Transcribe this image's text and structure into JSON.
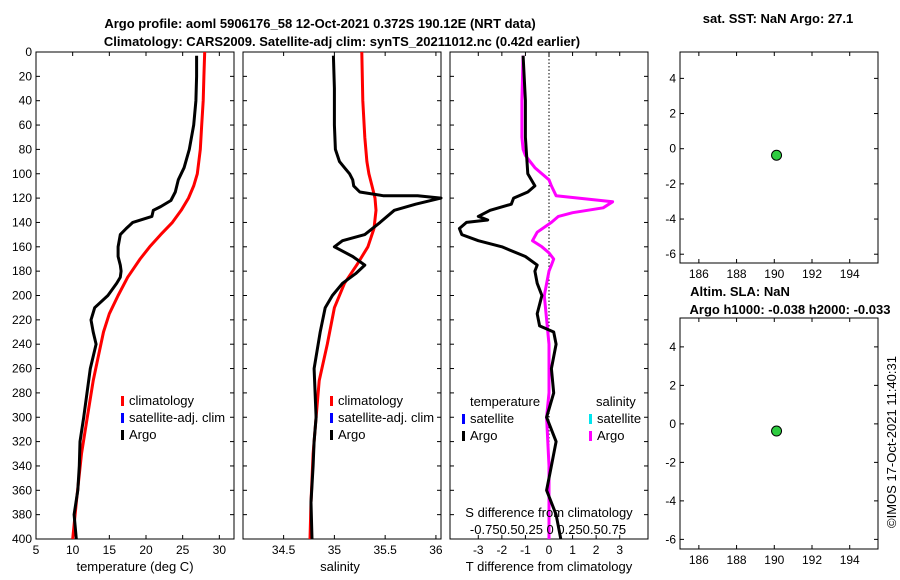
{
  "chart_data": [
    {
      "id": "temp",
      "type": "line",
      "title": [
        "Argo profile: aoml 5906176_58 12-Oct-2021 0.372S 190.12E (NRT data)",
        "Climatology: CARS2009. Satellite-adj clim: synTS_20211012.nc (0.42d earlier)"
      ],
      "xlabel": "temperature (deg C)",
      "ylabel": "",
      "xlim": [
        5,
        32
      ],
      "ylim": [
        400,
        0
      ],
      "xticks": [
        5,
        10,
        15,
        20,
        25,
        30
      ],
      "yticks": [
        0,
        20,
        40,
        60,
        80,
        100,
        120,
        140,
        160,
        180,
        200,
        220,
        240,
        260,
        280,
        300,
        320,
        340,
        360,
        380,
        400
      ],
      "legend": [
        "climatology",
        "satellite-adj. clim",
        "Argo"
      ],
      "legend_colors": [
        "#ff0000",
        "#0000ff",
        "#000000"
      ],
      "series": [
        {
          "name": "climatology",
          "color": "#ff0000",
          "x": [
            28.0,
            27.9,
            27.8,
            27.6,
            27.4,
            27.0,
            26.5,
            25.8,
            24.8,
            23.6,
            22.0,
            20.5,
            19.2,
            17.5,
            16.2,
            15.0,
            14.2,
            13.5,
            12.8,
            12.0,
            11.2,
            10.5,
            10.0
          ],
          "y": [
            0,
            20,
            40,
            60,
            80,
            100,
            110,
            120,
            130,
            140,
            150,
            160,
            170,
            185,
            200,
            215,
            230,
            250,
            270,
            300,
            330,
            370,
            400
          ]
        },
        {
          "name": "Argo",
          "color": "#000000",
          "x": [
            26.9,
            26.9,
            26.8,
            26.5,
            25.9,
            25.2,
            24.4,
            24.0,
            23.4,
            22.0,
            21.0,
            20.8,
            18.2,
            17.3,
            16.5,
            16.2,
            16.2,
            16.5,
            16.6,
            16.5,
            16.0,
            14.8,
            13.0,
            12.5,
            12.8,
            13.2,
            12.4,
            11.5,
            11.0,
            10.9,
            10.7,
            10.2,
            10.5
          ],
          "y": [
            3,
            20,
            40,
            60,
            80,
            95,
            105,
            115,
            122,
            127,
            130,
            135,
            140,
            145,
            150,
            160,
            168,
            175,
            180,
            185,
            190,
            200,
            210,
            220,
            230,
            240,
            260,
            300,
            320,
            340,
            360,
            380,
            400
          ]
        }
      ]
    },
    {
      "id": "sal",
      "type": "line",
      "xlabel": "salinity",
      "xlim": [
        34.1,
        36.05
      ],
      "ylim": [
        400,
        0
      ],
      "xticks": [
        34.5,
        35,
        35.5,
        36
      ],
      "xtick_labels": [
        "34.5",
        "35",
        "35.5",
        "36"
      ],
      "legend": [
        "climatology",
        "satellite-adj. clim",
        "Argo"
      ],
      "legend_colors": [
        "#ff0000",
        "#0000ff",
        "#000000"
      ],
      "series": [
        {
          "name": "climatology",
          "color": "#ff0000",
          "x": [
            35.27,
            35.28,
            35.3,
            35.32,
            35.34,
            35.37,
            35.4,
            35.41,
            35.39,
            35.33,
            35.22,
            35.1,
            35.0,
            34.93,
            34.85,
            34.82,
            34.79,
            34.77,
            34.76
          ],
          "y": [
            0,
            40,
            70,
            90,
            100,
            110,
            120,
            130,
            145,
            160,
            175,
            190,
            210,
            240,
            270,
            300,
            330,
            370,
            400
          ]
        },
        {
          "name": "Argo",
          "color": "#000000",
          "x": [
            34.99,
            35.0,
            35.0,
            35.01,
            35.05,
            35.1,
            35.15,
            35.18,
            35.19,
            35.25,
            35.48,
            35.82,
            36.05,
            35.8,
            35.59,
            35.45,
            35.3,
            35.08,
            35.0,
            35.18,
            35.3,
            35.21,
            35.08,
            34.98,
            34.91,
            34.86,
            34.8,
            34.82,
            34.8,
            34.79,
            34.77,
            34.78
          ],
          "y": [
            3,
            30,
            60,
            80,
            90,
            95,
            100,
            105,
            110,
            115,
            118,
            118,
            120,
            125,
            130,
            140,
            150,
            155,
            160,
            168,
            175,
            182,
            190,
            200,
            210,
            230,
            260,
            300,
            320,
            340,
            370,
            400
          ]
        }
      ]
    },
    {
      "id": "diff",
      "type": "line",
      "xlabel": "T difference from climatology",
      "xlim": [
        -4.2,
        4.2
      ],
      "ylim": [
        400,
        0
      ],
      "xticks": [
        -3,
        -2,
        -1,
        0,
        1,
        2,
        3
      ],
      "xtick_labels": [
        "-3",
        "-2",
        "-1",
        "0",
        "1",
        "2",
        "3"
      ],
      "top_label": "S difference from climatology",
      "s_tick_labels": "-0.750.50.25  0  0.250.50.75",
      "legend_titles": [
        "temperature",
        "salinity"
      ],
      "legend_left": [
        "satellite",
        "Argo"
      ],
      "legend_left_colors": [
        "#0000ff",
        "#000000"
      ],
      "legend_right": [
        "satellite",
        "Argo"
      ],
      "legend_right_colors": [
        "#00e5ee",
        "#ff00ff"
      ],
      "series": [
        {
          "name": "salinity Argo",
          "color": "#ff00ff",
          "x": [
            -1.1,
            -1.15,
            -1.15,
            -1.1,
            -1.0,
            -0.8,
            -0.6,
            -0.3,
            0.0,
            0.1,
            0.3,
            2.7,
            2.3,
            1.0,
            0.4,
            0.1,
            -0.5,
            -0.7,
            -0.3,
            0.0,
            0.2,
            0.1,
            0.0,
            -0.2,
            0.0,
            0.0,
            -0.1,
            0.0,
            0.0,
            0.0
          ],
          "y": [
            3,
            40,
            70,
            80,
            85,
            90,
            95,
            100,
            105,
            110,
            118,
            123,
            128,
            132,
            135,
            140,
            148,
            155,
            160,
            165,
            170,
            175,
            180,
            200,
            240,
            280,
            300,
            340,
            370,
            400
          ]
        },
        {
          "name": "temperature Argo",
          "color": "#000000",
          "x": [
            -1.1,
            -1.0,
            -1.0,
            -0.9,
            -0.6,
            -0.9,
            -1.5,
            -1.6,
            -2.5,
            -3.0,
            -2.6,
            -3.5,
            -3.8,
            -3.7,
            -3.0,
            -2.0,
            -1.0,
            -0.5,
            -0.6,
            -0.5,
            -0.3,
            -0.5,
            -0.4,
            0.2,
            0.3,
            0.1,
            0.2,
            -0.1,
            0.3,
            0.1,
            -0.1,
            0.3,
            0.5
          ],
          "y": [
            3,
            40,
            70,
            100,
            110,
            115,
            120,
            125,
            130,
            135,
            138,
            140,
            145,
            150,
            155,
            160,
            168,
            175,
            180,
            190,
            200,
            215,
            225,
            230,
            240,
            260,
            280,
            300,
            320,
            340,
            360,
            380,
            400
          ]
        }
      ]
    },
    {
      "id": "sst",
      "type": "scatter",
      "title": "sat. SST: NaN Argo: 27.1",
      "xlim": [
        185,
        195.5
      ],
      "ylim": [
        -6.5,
        5.5
      ],
      "xticks": [
        186,
        188,
        190,
        192,
        194
      ],
      "yticks": [
        4,
        2,
        0,
        -2,
        -4,
        -6
      ],
      "point": {
        "x": 190.12,
        "y": -0.372,
        "color": "#2ecc40"
      }
    },
    {
      "id": "sla",
      "type": "scatter",
      "title": [
        "Altim. SLA: NaN",
        "Argo h1000: -0.038 h2000: -0.033"
      ],
      "xlim": [
        185,
        195.5
      ],
      "ylim": [
        -6.5,
        5.5
      ],
      "xticks": [
        186,
        188,
        190,
        192,
        194
      ],
      "yticks": [
        4,
        2,
        0,
        -2,
        -4,
        -6
      ],
      "point": {
        "x": 190.12,
        "y": -0.372,
        "color": "#2ecc40"
      }
    }
  ],
  "footer": "©IMOS 17-Oct-2021 11:40:31"
}
